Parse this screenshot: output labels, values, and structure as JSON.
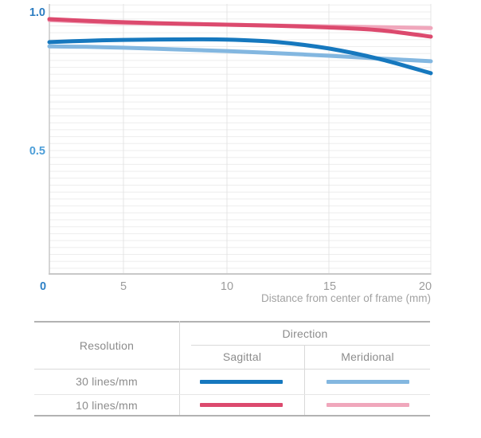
{
  "chart_data": {
    "type": "line",
    "title": "",
    "xlabel": "Distance from center of frame (mm)",
    "ylabel": "",
    "xlim": [
      0,
      20
    ],
    "ylim": [
      0,
      1.0
    ],
    "x_ticks": [
      0,
      5,
      10,
      15,
      20
    ],
    "x_tick_labels": [
      "0",
      "5",
      "10",
      "15",
      "20"
    ],
    "y_tick_labels": [
      {
        "text": "1.0",
        "value": 1.0,
        "color": "#2b7cc1"
      },
      {
        "text": "0.5",
        "value": 0.5,
        "color": "#4c9ed8"
      }
    ],
    "grid": "fine horizontal lines every 0.025, vertical lines at x ticks",
    "legend_position": "separate table below chart",
    "x": [
      0,
      2.5,
      5,
      7.5,
      10,
      12.5,
      15,
      17.5,
      20
    ],
    "series": [
      {
        "name": "10 lines/mm Meridional",
        "color": "#f0a7bc",
        "values": [
          0.97,
          0.965,
          0.96,
          0.957,
          0.954,
          0.951,
          0.948,
          0.945,
          0.942
        ]
      },
      {
        "name": "10 lines/mm Sagittal",
        "color": "#dc4a6e",
        "values": [
          0.974,
          0.968,
          0.963,
          0.958,
          0.954,
          0.95,
          0.944,
          0.934,
          0.911
        ]
      },
      {
        "name": "30 lines/mm Meridional",
        "color": "#83b7e0",
        "values": [
          0.876,
          0.874,
          0.871,
          0.865,
          0.859,
          0.851,
          0.842,
          0.832,
          0.822
        ]
      },
      {
        "name": "30 lines/mm Sagittal",
        "color": "#1678be",
        "values": [
          0.891,
          0.896,
          0.899,
          0.901,
          0.9,
          0.891,
          0.868,
          0.83,
          0.779
        ]
      }
    ],
    "axis_colors": {
      "zero_tick": "#2e81c6",
      "gray_ticks": "#9c9c9c",
      "axis_title": "#a2a2a2"
    }
  },
  "legend_table": {
    "resolution_header": "Resolution",
    "direction_header": "Direction",
    "columns": [
      "Sagittal",
      "Meridional"
    ],
    "rows": [
      {
        "label": "30 lines/mm",
        "sagittal_color": "#1678be",
        "meridional_color": "#83b7e0"
      },
      {
        "label": "10 lines/mm",
        "sagittal_color": "#dc4a6e",
        "meridional_color": "#f0a7bc"
      }
    ]
  }
}
